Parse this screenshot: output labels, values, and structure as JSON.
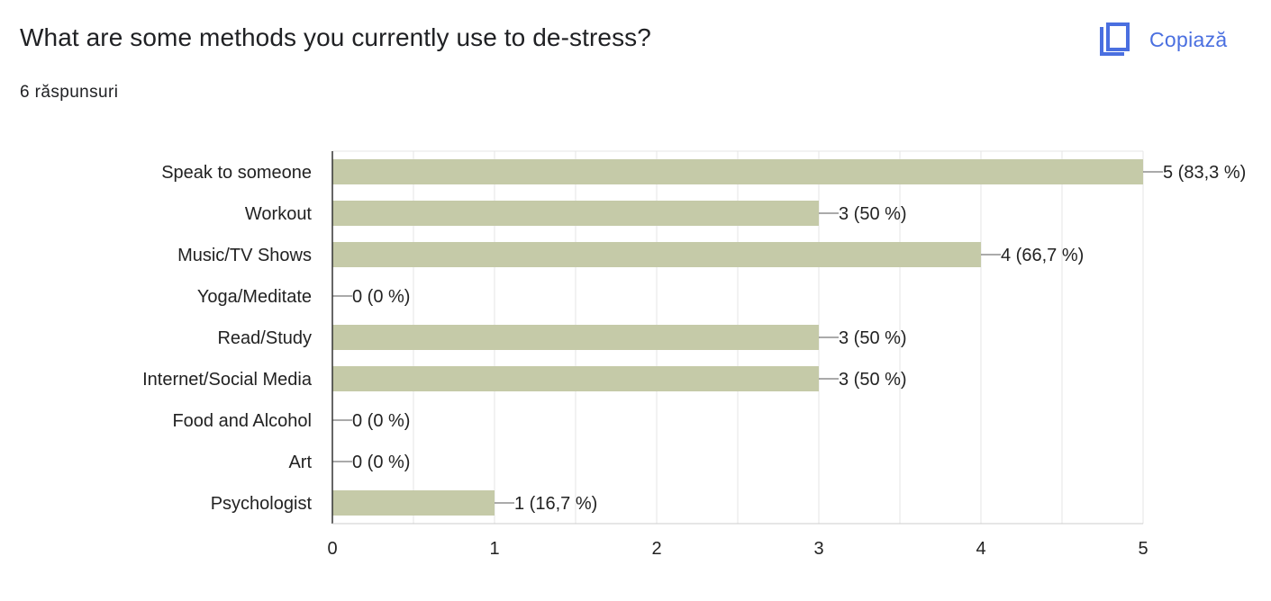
{
  "question": {
    "title": "What are some methods you currently use to de-stress?",
    "responses": "6 răspunsuri"
  },
  "copy": {
    "label": "Copiază",
    "icon": "copy-icon",
    "color": "#4a6fe0"
  },
  "chart_data": {
    "type": "bar",
    "orientation": "horizontal",
    "categories": [
      "Speak to someone",
      "Workout",
      "Music/TV Shows",
      "Yoga/Meditate",
      "Read/Study",
      "Internet/Social Media",
      "Food and Alcohol",
      "Art",
      "Psychologist"
    ],
    "values": [
      5,
      3,
      4,
      0,
      3,
      3,
      0,
      0,
      1
    ],
    "data_labels": [
      "5 (83,3 %)",
      "3 (50 %)",
      "4 (66,7 %)",
      "0 (0 %)",
      "3 (50 %)",
      "3 (50 %)",
      "0 (0 %)",
      "0 (0 %)",
      "1 (16,7 %)"
    ],
    "xlim": [
      0,
      5
    ],
    "xticks": [
      "0",
      "1",
      "2",
      "3",
      "4",
      "5"
    ],
    "grid": true,
    "bar_color": "#c5caa8",
    "grid_color": "#e6e6e6",
    "axis_color": "#333333"
  }
}
